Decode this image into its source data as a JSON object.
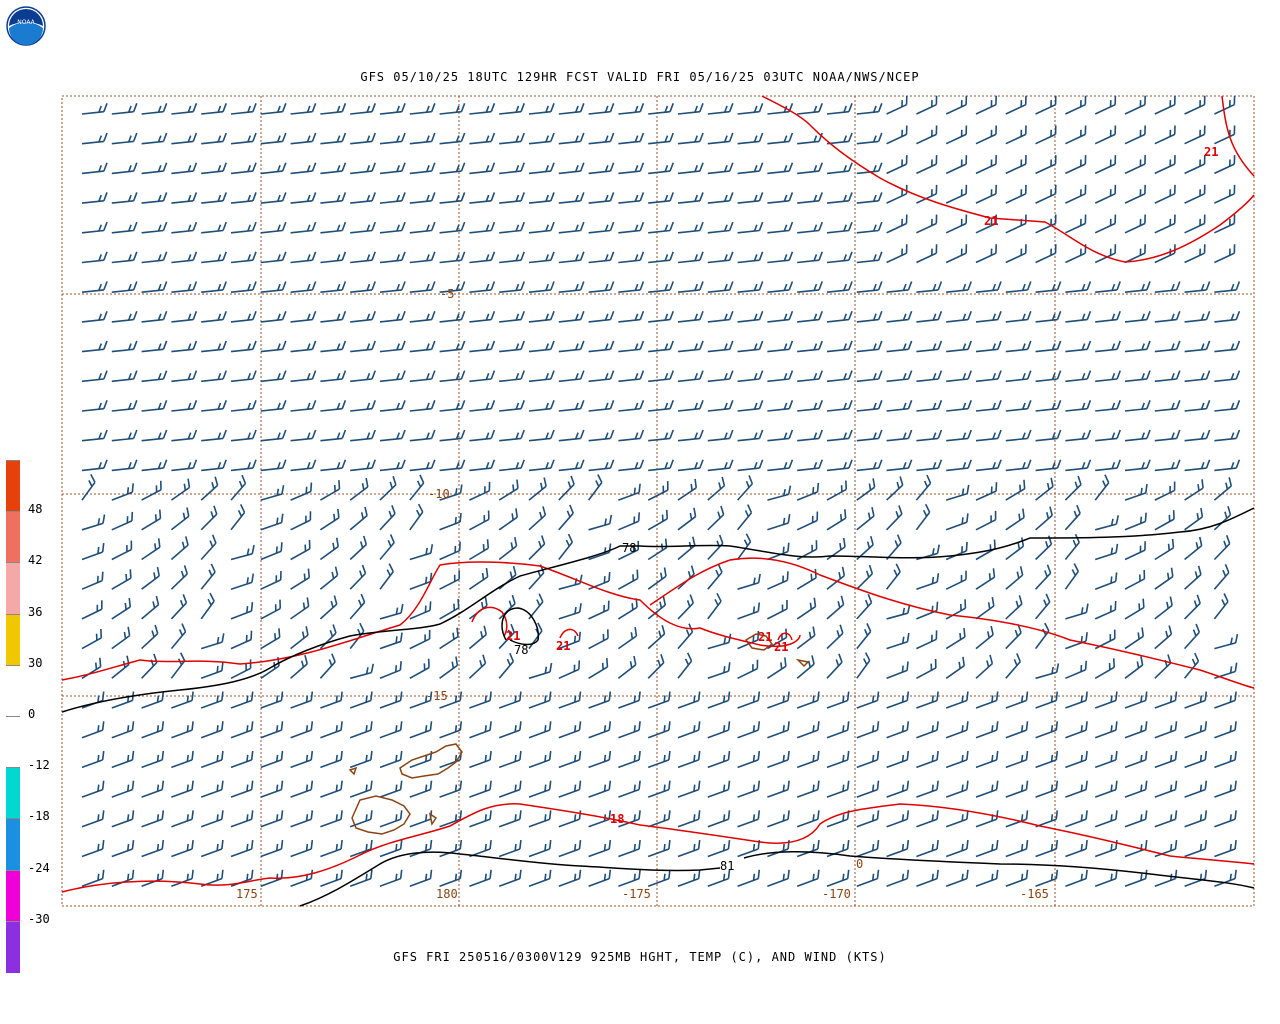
{
  "header": {
    "top_title": "GFS 05/10/25 18UTC 129HR FCST VALID FRI 05/16/25 03UTC NOAA/NWS/NCEP",
    "bottom_title": "GFS FRI 250516/0300V129 925MB HGHT, TEMP (C), AND WIND (KTS)",
    "logo_text": "NOAA"
  },
  "map": {
    "grid_color": "#a0522d",
    "barb_color": "#1f4e79",
    "temp_contour_color": "#e00000",
    "height_contour_color": "#000000",
    "coast_color": "#8b4513",
    "lat_labels": [
      "-5",
      "-10",
      "-15"
    ],
    "lon_labels": [
      "175",
      "180",
      "-175",
      "-170",
      "-165"
    ],
    "extra_labels": [
      "0"
    ],
    "temp_labels": [
      "21",
      "21",
      "21",
      "21",
      "21",
      "21",
      "18"
    ],
    "height_labels": [
      "78",
      "78",
      "81"
    ]
  },
  "colorbar": {
    "labels": [
      "48",
      "42",
      "36",
      "30",
      "0",
      "-12",
      "-18",
      "-24",
      "-30"
    ],
    "colors": [
      "#e8400a",
      "#f07060",
      "#f4a8a8",
      "#f0c800",
      "#ffffff",
      "#00d8d0",
      "#1a90e0",
      "#f000d8",
      "#8a30e0"
    ]
  }
}
